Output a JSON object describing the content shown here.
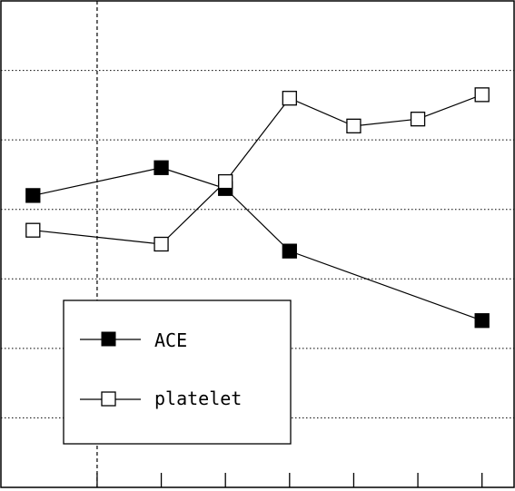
{
  "chart_data": {
    "type": "line",
    "title": "",
    "xlabel": "",
    "ylabel": "",
    "x": [
      0,
      2,
      3,
      4,
      5,
      6,
      7
    ],
    "xlim": [
      -0.5,
      7.5
    ],
    "ylim": [
      0,
      7
    ],
    "grid": "horizontal-dotted",
    "reference_line_x": 1,
    "series": [
      {
        "name": "ACE",
        "marker": "filled-square",
        "values": [
          4.2,
          4.6,
          4.3,
          3.4,
          null,
          null,
          2.4
        ]
      },
      {
        "name": "platelet",
        "marker": "open-square",
        "values": [
          3.7,
          3.5,
          4.4,
          5.6,
          5.2,
          5.3,
          5.65
        ]
      }
    ],
    "legend": {
      "position": "bottom-left",
      "entries": [
        "ACE",
        "platelet"
      ]
    },
    "colors": {
      "line": "#000000",
      "background": "#ffffff"
    }
  }
}
